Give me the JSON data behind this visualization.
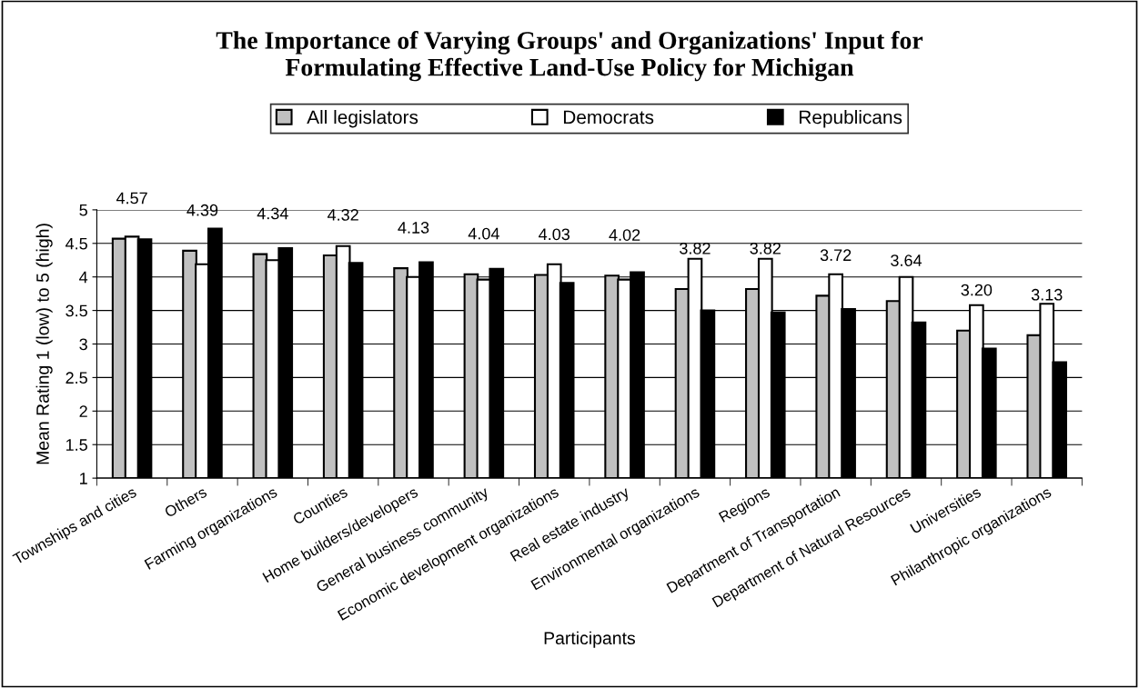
{
  "chart_data": {
    "type": "bar",
    "title": "The Importance of Varying Groups' and Organizations' Input for\nFormulating Effective Land-Use Policy for Michigan",
    "xlabel": "Participants",
    "ylabel": "Mean Rating 1 (low) to 5 (high)",
    "categories": [
      "Townships and cities",
      "Others",
      "Farming organizations",
      "Counties",
      "Home builders/developers",
      "General business community",
      "Economic development organizations",
      "Real estate industry",
      "Environmental organizations",
      "Regions",
      "Department of Transportation",
      "Department of Natural Resources",
      "Universities",
      "Philanthropic organizations"
    ],
    "series": [
      {
        "name": "All legislators",
        "color": "#c0c0c0",
        "values": [
          4.57,
          4.39,
          4.34,
          4.32,
          4.13,
          4.04,
          4.03,
          4.02,
          3.82,
          3.82,
          3.72,
          3.64,
          3.2,
          3.13
        ],
        "value_labels": [
          "4.57",
          "4.39",
          "4.34",
          "4.32",
          "4.13",
          "4.04",
          "4.03",
          "4.02",
          "3.82",
          "3.82",
          "3.72",
          "3.64",
          "3.20",
          "3.13"
        ]
      },
      {
        "name": "Democrats",
        "color": "#ffffff",
        "values": [
          4.6,
          4.19,
          4.25,
          4.46,
          4.0,
          3.96,
          4.19,
          3.96,
          4.27,
          4.27,
          4.04,
          4.0,
          3.58,
          3.6
        ]
      },
      {
        "name": "Republicans",
        "color": "#000000",
        "values": [
          4.56,
          4.72,
          4.43,
          4.21,
          4.22,
          4.12,
          3.91,
          4.07,
          3.5,
          3.47,
          3.52,
          3.32,
          2.93,
          2.73
        ]
      }
    ],
    "ylim": [
      1,
      5
    ],
    "yticks": [
      1,
      1.5,
      2,
      2.5,
      3,
      3.5,
      4,
      4.5,
      5
    ],
    "grid": "y",
    "legend": "top"
  }
}
